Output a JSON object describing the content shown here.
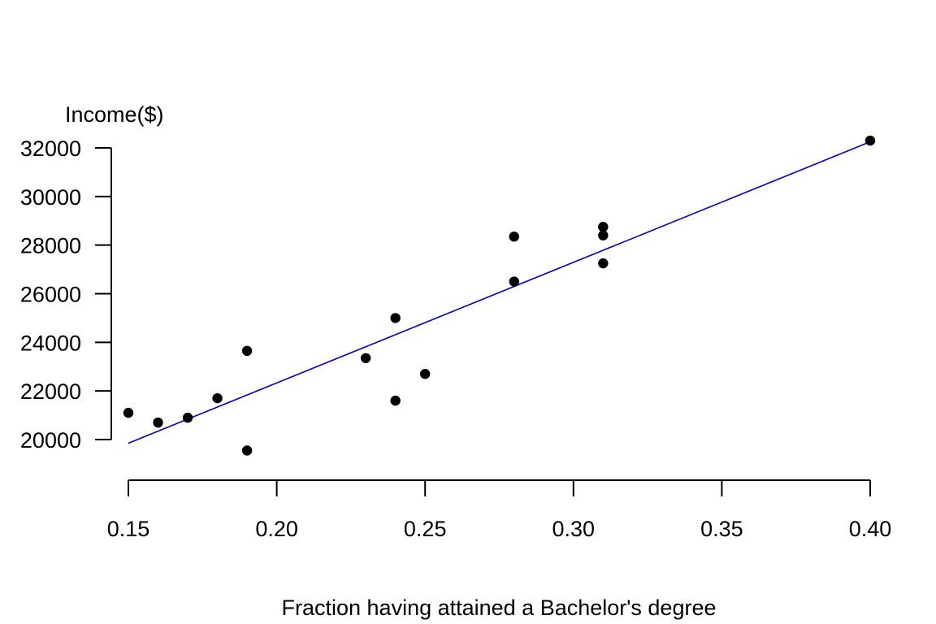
{
  "chart_data": {
    "type": "scatter",
    "title": "",
    "xlabel": "Fraction having attained a Bachelor's degree",
    "ylabel": "Income($)",
    "x_ticks": [
      "0.15",
      "0.20",
      "0.25",
      "0.30",
      "0.35",
      "0.40"
    ],
    "y_ticks": [
      "20000",
      "22000",
      "24000",
      "26000",
      "28000",
      "30000",
      "32000"
    ],
    "xlim": [
      0.15,
      0.4
    ],
    "ylim": [
      20000,
      32000
    ],
    "grid": false,
    "legend": "none",
    "points": [
      {
        "x": 0.15,
        "y": 21100
      },
      {
        "x": 0.16,
        "y": 20700
      },
      {
        "x": 0.17,
        "y": 20900
      },
      {
        "x": 0.18,
        "y": 21700
      },
      {
        "x": 0.19,
        "y": 23650
      },
      {
        "x": 0.19,
        "y": 19550
      },
      {
        "x": 0.23,
        "y": 23350
      },
      {
        "x": 0.24,
        "y": 25000
      },
      {
        "x": 0.24,
        "y": 21600
      },
      {
        "x": 0.25,
        "y": 22700
      },
      {
        "x": 0.28,
        "y": 28350
      },
      {
        "x": 0.28,
        "y": 26500
      },
      {
        "x": 0.31,
        "y": 28750
      },
      {
        "x": 0.31,
        "y": 28400
      },
      {
        "x": 0.31,
        "y": 27250
      },
      {
        "x": 0.4,
        "y": 32300
      }
    ],
    "fit_line": {
      "x": [
        0.15,
        0.4
      ],
      "y": [
        19850,
        32250
      ]
    },
    "colors": {
      "points": "#000000",
      "fit_line": "#0000cd",
      "axes": "#000000"
    }
  }
}
